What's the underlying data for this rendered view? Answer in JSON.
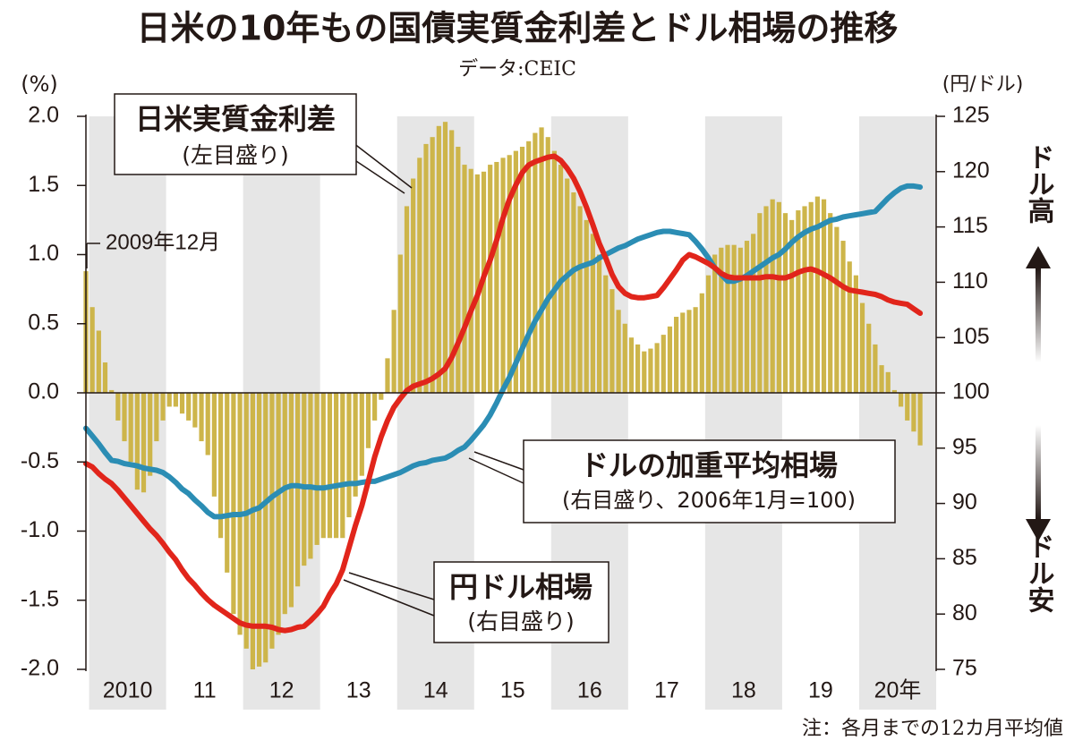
{
  "chart_data": {
    "type": "bar-line",
    "title": "日米の10年もの国債実質金利差とドル相場の推移",
    "source": "データ:CEIC",
    "ylabel": "(%)",
    "y2label": "(円/ドル)",
    "annotation": "2009年12月",
    "up_label": "ドル高",
    "down_label": "ドル安",
    "footnote": "注：各月までの12カ月平均値",
    "year_labels": [
      "2010",
      "11",
      "12",
      "13",
      "14",
      "15",
      "16",
      "17",
      "18",
      "19",
      "20年"
    ],
    "ylim": [
      -2,
      2
    ],
    "yticks": [
      {
        "value": 2,
        "label": "2.0"
      },
      1.5,
      {
        "value": 1,
        "label": "1.0"
      },
      0.5,
      {
        "value": 0,
        "label": "0.0"
      },
      -0.5,
      {
        "value": -1,
        "label": "-1.0"
      },
      -1.5,
      {
        "value": -2,
        "label": "-2.0"
      }
    ],
    "y2lim": [
      75,
      125
    ],
    "y2ticks": [
      125,
      120,
      115,
      110,
      105,
      100,
      95,
      90,
      85,
      80,
      75
    ],
    "series": [
      {
        "name": "日米実質金利差",
        "note": "(左目盛り)",
        "type": "bar",
        "color": "#cdb54a",
        "values": [
          0.88,
          0.62,
          0.45,
          0.22,
          0.02,
          -0.2,
          -0.35,
          -0.5,
          -0.7,
          -0.72,
          -0.6,
          -0.35,
          -0.2,
          -0.1,
          -0.1,
          -0.15,
          -0.2,
          -0.25,
          -0.35,
          -0.45,
          -0.75,
          -1.05,
          -1.3,
          -1.6,
          -1.75,
          -1.85,
          -2.0,
          -1.98,
          -1.95,
          -1.85,
          -1.75,
          -1.6,
          -1.55,
          -1.4,
          -1.25,
          -1.2,
          -1.1,
          -1.05,
          -1.05,
          -1.05,
          -1.05,
          -0.9,
          -0.75,
          -0.6,
          -0.4,
          -0.2,
          -0.05,
          0.25,
          0.6,
          1.0,
          1.35,
          1.55,
          1.7,
          1.8,
          1.85,
          1.93,
          1.96,
          1.9,
          1.78,
          1.65,
          1.62,
          1.58,
          1.6,
          1.65,
          1.67,
          1.7,
          1.72,
          1.75,
          1.78,
          1.82,
          1.88,
          1.92,
          1.85,
          1.75,
          1.65,
          1.55,
          1.45,
          1.35,
          1.25,
          1.15,
          1.0,
          0.85,
          0.75,
          0.6,
          0.5,
          0.4,
          0.35,
          0.3,
          0.32,
          0.36,
          0.42,
          0.48,
          0.55,
          0.58,
          0.6,
          0.62,
          0.72,
          0.85,
          1.0,
          1.05,
          1.07,
          1.07,
          1.05,
          1.1,
          1.15,
          1.3,
          1.35,
          1.4,
          1.38,
          1.3,
          1.25,
          1.32,
          1.35,
          1.38,
          1.42,
          1.4,
          1.3,
          1.2,
          1.1,
          0.95,
          0.85,
          0.65,
          0.5,
          0.35,
          0.2,
          0.15,
          0.02,
          -0.1,
          -0.2,
          -0.28,
          -0.38
        ]
      },
      {
        "name": "ドルの加重平均相場",
        "note": "(右目盛り、2006年1月=100)",
        "type": "line",
        "axis": "y2",
        "color": "#2b8db4",
        "values": [
          96.8,
          96.1,
          95.4,
          94.6,
          93.9,
          93.8,
          93.6,
          93.5,
          93.4,
          93.2,
          93.1,
          93.0,
          92.8,
          92.4,
          91.9,
          91.3,
          90.9,
          90.3,
          89.8,
          89.2,
          88.8,
          88.8,
          88.9,
          89.0,
          89.0,
          89.1,
          89.4,
          89.6,
          90.1,
          90.6,
          91.0,
          91.4,
          91.6,
          91.6,
          91.5,
          91.5,
          91.4,
          91.4,
          91.5,
          91.6,
          91.7,
          91.8,
          91.8,
          91.9,
          92.0,
          92.0,
          92.2,
          92.4,
          92.6,
          92.8,
          93.1,
          93.4,
          93.6,
          93.7,
          93.9,
          94.0,
          94.1,
          94.4,
          94.8,
          95.1,
          95.7,
          96.4,
          97.1,
          98.0,
          99.1,
          100.3,
          101.4,
          102.7,
          104.0,
          105.3,
          106.5,
          107.5,
          108.5,
          109.3,
          110.1,
          110.6,
          111.1,
          111.4,
          111.6,
          111.8,
          112.2,
          112.5,
          112.8,
          113.1,
          113.3,
          113.6,
          113.9,
          114.1,
          114.3,
          114.5,
          114.6,
          114.6,
          114.5,
          114.4,
          114.3,
          113.7,
          113.0,
          112.2,
          111.3,
          110.7,
          110.1,
          110.1,
          110.3,
          110.6,
          111.0,
          111.4,
          111.8,
          112.2,
          112.5,
          113.0,
          113.6,
          114.1,
          114.5,
          114.8,
          115.0,
          115.3,
          115.6,
          115.7,
          115.9,
          116.0,
          116.1,
          116.2,
          116.3,
          116.4,
          117.0,
          117.6,
          118.1,
          118.5,
          118.7,
          118.7,
          118.6
        ]
      },
      {
        "name": "円ドル相場",
        "note": "(右目盛り)",
        "type": "line",
        "axis": "y2",
        "color": "#e1251b",
        "values": [
          93.6,
          93.3,
          92.7,
          92.2,
          91.8,
          91.2,
          90.5,
          89.8,
          89.1,
          88.4,
          87.7,
          87.1,
          86.4,
          85.6,
          84.9,
          84.0,
          83.2,
          82.6,
          81.9,
          81.3,
          80.8,
          80.4,
          80.0,
          79.6,
          79.2,
          79.0,
          78.9,
          78.9,
          78.9,
          78.8,
          78.6,
          78.5,
          78.6,
          78.8,
          78.9,
          79.4,
          80.0,
          80.7,
          81.8,
          82.7,
          84.0,
          86.0,
          88.0,
          89.8,
          92.0,
          94.2,
          96.0,
          97.5,
          98.7,
          99.5,
          100.2,
          100.6,
          100.8,
          101.0,
          101.3,
          101.7,
          102.2,
          103.2,
          104.5,
          105.9,
          107.4,
          108.8,
          110.5,
          112.0,
          113.8,
          115.8,
          117.5,
          118.8,
          119.9,
          120.6,
          120.9,
          121.1,
          121.3,
          121.4,
          121.0,
          120.3,
          119.4,
          118.2,
          116.8,
          115.2,
          113.5,
          112.2,
          110.7,
          109.6,
          109.0,
          108.7,
          108.6,
          108.6,
          108.7,
          108.8,
          109.5,
          110.3,
          111.1,
          112.0,
          112.5,
          112.3,
          112.0,
          111.7,
          111.3,
          110.8,
          110.5,
          110.4,
          110.4,
          110.4,
          110.4,
          110.4,
          110.5,
          110.5,
          110.4,
          110.4,
          110.6,
          110.9,
          111.1,
          111.2,
          111.0,
          110.7,
          110.4,
          110.0,
          109.6,
          109.3,
          109.2,
          109.1,
          109.0,
          108.9,
          108.7,
          108.4,
          108.2,
          108.1,
          108.0,
          107.6,
          107.2
        ]
      }
    ]
  }
}
